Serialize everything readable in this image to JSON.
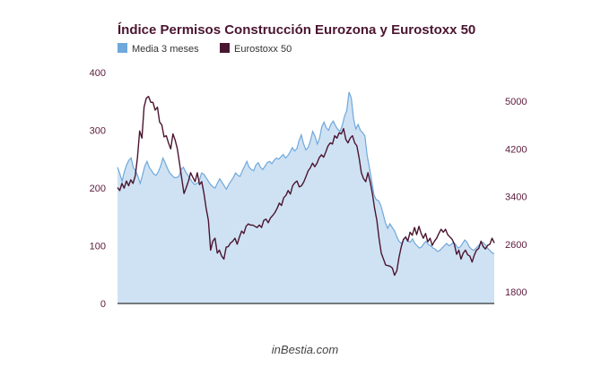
{
  "chart_data": {
    "type": "line",
    "title": "Índice Permisos Construcción Eurozona y Eurostoxx 50",
    "legend": {
      "placement": "top-left",
      "entries": [
        "Media 3 meses",
        "Eurostoxx 50"
      ]
    },
    "y_left": {
      "range": [
        0,
        400
      ],
      "ticks": [
        "0",
        "100",
        "200",
        "300",
        "400"
      ]
    },
    "y_right": {
      "range": [
        1800,
        5400
      ],
      "ticks": [
        "1800",
        "2600",
        "3400",
        "4200",
        "5000"
      ]
    },
    "grid": false,
    "series": [
      {
        "name": "Media 3 meses",
        "type": "area",
        "axis": "left",
        "color": "#6fa8dc",
        "fill": "#cfe2f3",
        "values": [
          236,
          225,
          212,
          228,
          240,
          248,
          252,
          235,
          230,
          220,
          208,
          222,
          238,
          246,
          236,
          230,
          224,
          222,
          228,
          238,
          252,
          244,
          234,
          226,
          222,
          218,
          218,
          220,
          232,
          236,
          228,
          222,
          216,
          210,
          206,
          208,
          212,
          226,
          224,
          218,
          212,
          206,
          202,
          200,
          208,
          216,
          210,
          204,
          198,
          206,
          212,
          218,
          226,
          222,
          220,
          230,
          238,
          246,
          236,
          232,
          230,
          240,
          244,
          236,
          232,
          238,
          244,
          246,
          242,
          248,
          252,
          250,
          254,
          258,
          252,
          256,
          262,
          270,
          264,
          268,
          282,
          292,
          276,
          266,
          270,
          282,
          298,
          290,
          276,
          286,
          306,
          314,
          304,
          300,
          310,
          316,
          308,
          302,
          298,
          308,
          324,
          334,
          366,
          356,
          320,
          302,
          310,
          300,
          296,
          290,
          256,
          236,
          212,
          188,
          180,
          178,
          170,
          156,
          140,
          130,
          138,
          132,
          126,
          116,
          108,
          104,
          110,
          116,
          108,
          106,
          112,
          104,
          100,
          96,
          98,
          104,
          108,
          102,
          100,
          96,
          94,
          90,
          92,
          96,
          100,
          104,
          100,
          102,
          106,
          102,
          96,
          98,
          104,
          110,
          106,
          98,
          94,
          92,
          96,
          100,
          104,
          106,
          102,
          96,
          92,
          88,
          86
        ]
      },
      {
        "name": "Eurostoxx 50",
        "type": "line",
        "axis": "right",
        "color": "#4a1530",
        "values": [
          3550,
          3500,
          3620,
          3540,
          3660,
          3580,
          3680,
          3620,
          3750,
          4050,
          4500,
          4380,
          4900,
          5050,
          5080,
          4980,
          4980,
          4850,
          4900,
          4650,
          4600,
          4400,
          4420,
          4300,
          4200,
          4450,
          4350,
          4200,
          3950,
          3700,
          3450,
          3550,
          3660,
          3800,
          3720,
          3650,
          3800,
          3600,
          3650,
          3450,
          3200,
          3000,
          2500,
          2650,
          2700,
          2450,
          2500,
          2400,
          2350,
          2550,
          2560,
          2620,
          2650,
          2700,
          2600,
          2720,
          2820,
          2780,
          2900,
          2940,
          2920,
          2920,
          2900,
          2880,
          2920,
          2880,
          3000,
          3020,
          2960,
          3040,
          3080,
          3130,
          3200,
          3290,
          3250,
          3380,
          3420,
          3500,
          3440,
          3580,
          3630,
          3660,
          3560,
          3580,
          3640,
          3730,
          3830,
          3880,
          3960,
          3900,
          3960,
          4050,
          4100,
          4060,
          4150,
          4250,
          4300,
          4280,
          4420,
          4380,
          4470,
          4450,
          4540,
          4360,
          4300,
          4380,
          4420,
          4300,
          4250,
          4050,
          3800,
          3700,
          3650,
          3800,
          3650,
          3450,
          3200,
          3000,
          2700,
          2450,
          2350,
          2250,
          2240,
          2230,
          2200,
          2080,
          2150,
          2380,
          2550,
          2680,
          2720,
          2650,
          2800,
          2750,
          2880,
          2760,
          2900,
          2780,
          2700,
          2780,
          2640,
          2700,
          2580,
          2650,
          2700,
          2780,
          2850,
          2800,
          2850,
          2760,
          2720,
          2680,
          2600,
          2430,
          2500,
          2350,
          2450,
          2500,
          2420,
          2400,
          2300,
          2420,
          2500,
          2530,
          2650,
          2560,
          2520,
          2580,
          2600,
          2700,
          2620
        ]
      }
    ],
    "source": "inBestia.com"
  },
  "colors": {
    "title": "#4a1530",
    "area_line": "#6fa8dc",
    "area_fill": "#cfe2f3",
    "stoxx": "#4a1530",
    "axis": "#333333"
  }
}
